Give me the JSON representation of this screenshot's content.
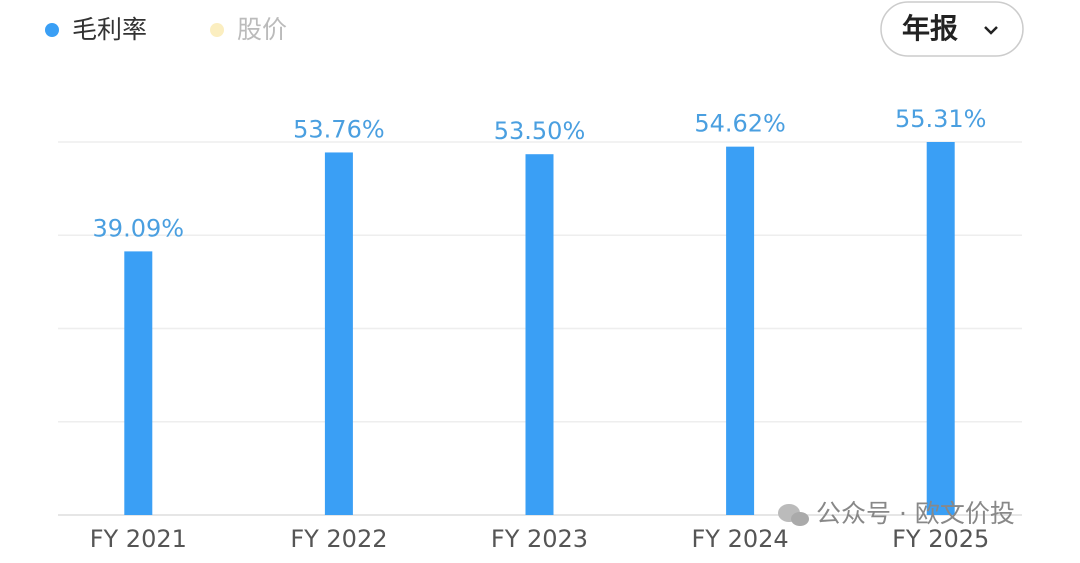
{
  "chart_data": {
    "type": "bar",
    "categories": [
      "FY 2021",
      "FY 2022",
      "FY 2023",
      "FY 2024",
      "FY 2025"
    ],
    "series": [
      {
        "name": "毛利率",
        "color": "#3a9ff5",
        "values": [
          39.09,
          53.76,
          53.5,
          54.62,
          55.31
        ],
        "value_labels": [
          "39.09%",
          "53.76%",
          "53.50%",
          "54.62%",
          "55.31%"
        ]
      },
      {
        "name": "股价",
        "color": "#fbeec0",
        "values": [
          null,
          null,
          null,
          null,
          null
        ]
      }
    ],
    "ylim": [
      0,
      55.31
    ],
    "yticks": [
      0,
      13.83,
      27.66,
      41.48,
      55.31
    ],
    "grid": true,
    "period_selector": "年报",
    "watermark": "公众号 · 欧文价投"
  }
}
